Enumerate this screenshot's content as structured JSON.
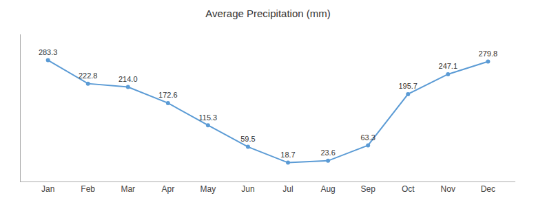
{
  "chart_data": {
    "type": "line",
    "title": "Average Precipitation (mm)",
    "categories": [
      "Jan",
      "Feb",
      "Mar",
      "Apr",
      "May",
      "Jun",
      "Jul",
      "Aug",
      "Sep",
      "Oct",
      "Nov",
      "Dec"
    ],
    "values": [
      283.3,
      222.8,
      214.0,
      172.6,
      115.3,
      59.5,
      18.7,
      23.6,
      63.3,
      195.7,
      247.1,
      279.8
    ],
    "value_labels": [
      "283.3",
      "222.8",
      "214.0",
      "172.6",
      "115.3",
      "59.5",
      "18.7",
      "23.6",
      "63.3",
      "195.7",
      "247.1",
      "279.8"
    ],
    "color": "#5B9BD5",
    "marker": "circle",
    "ylim": [
      -30,
      350
    ],
    "grid": false,
    "data_labels": true,
    "tick_labels": "x"
  }
}
